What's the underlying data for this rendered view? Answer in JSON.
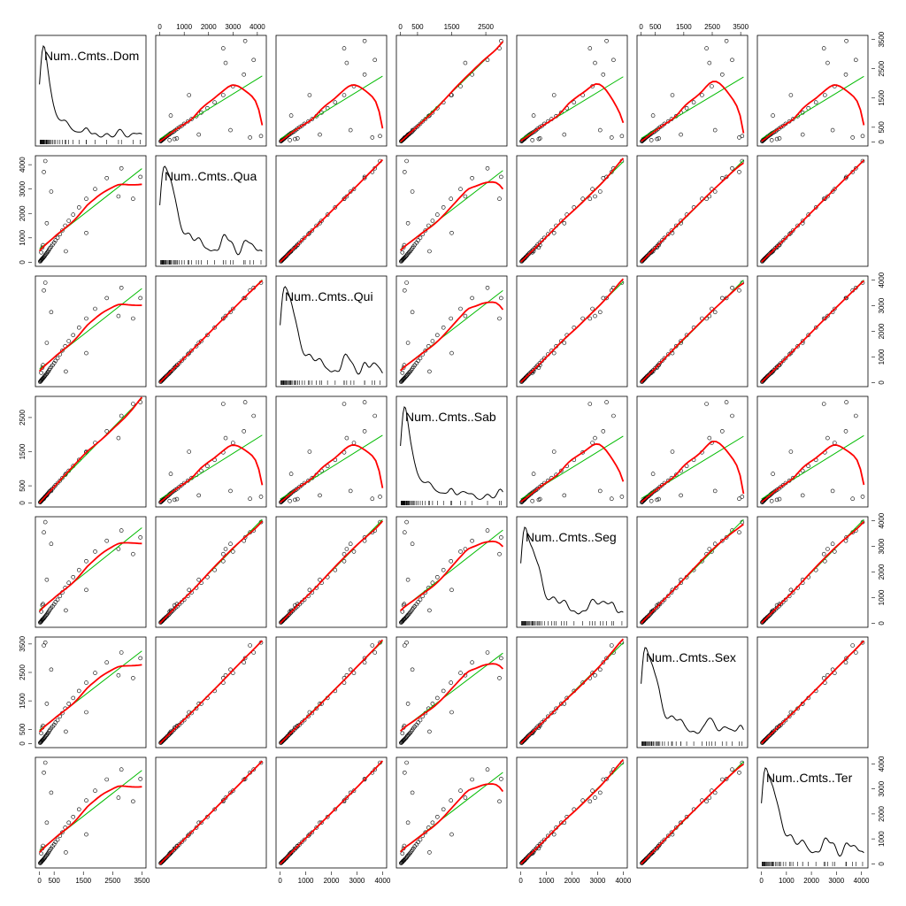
{
  "chart_data": {
    "type": "scatter",
    "title": "",
    "variables": [
      {
        "name": "Num..Cmts..Dom",
        "range": [
          0,
          3500
        ]
      },
      {
        "name": "Num..Cmts..Qua",
        "range": [
          0,
          4200
        ]
      },
      {
        "name": "Num..Cmts..Qui",
        "range": [
          0,
          4000
        ]
      },
      {
        "name": "Num..Cmts..Sab",
        "range": [
          0,
          3000
        ]
      },
      {
        "name": "Num..Cmts..Seg",
        "range": [
          0,
          4000
        ]
      },
      {
        "name": "Num..Cmts..Sex",
        "range": [
          0,
          3600
        ]
      },
      {
        "name": "Num..Cmts..Ter",
        "range": [
          0,
          4100
        ]
      }
    ],
    "ticks": [
      [
        0,
        500,
        1500,
        2500,
        3500
      ],
      [
        0,
        1000,
        2000,
        3000,
        4000
      ],
      [
        0,
        1000,
        2000,
        3000,
        4000
      ],
      [
        0,
        500,
        1500,
        2500
      ],
      [
        0,
        1000,
        2000,
        3000,
        4000
      ],
      [
        0,
        500,
        1500,
        2500,
        3500
      ],
      [
        0,
        1000,
        2000,
        3000,
        4000
      ]
    ],
    "tick_labels": [
      [
        "0",
        "500",
        "1500",
        "2500",
        "3500"
      ],
      [
        "0",
        "1000",
        "2000",
        "3000",
        "4000"
      ],
      [
        "0",
        "1000",
        "2000",
        "3000",
        "4000"
      ],
      [
        "0",
        "500",
        "1500",
        "2500"
      ],
      [
        "0",
        "1000",
        "2000",
        "3000",
        "4000"
      ],
      [
        "0",
        "500",
        "1500",
        "2500",
        "3500"
      ],
      [
        "0",
        "1000",
        "2000",
        "3000",
        "4000"
      ]
    ],
    "observations": [
      [
        20,
        30,
        25,
        18,
        28,
        24,
        27
      ],
      [
        35,
        50,
        48,
        30,
        45,
        40,
        44
      ],
      [
        50,
        70,
        65,
        45,
        60,
        55,
        62
      ],
      [
        60,
        90,
        85,
        55,
        80,
        70,
        82
      ],
      [
        75,
        110,
        100,
        70,
        95,
        90,
        98
      ],
      [
        90,
        130,
        125,
        80,
        115,
        105,
        120
      ],
      [
        100,
        150,
        140,
        95,
        140,
        120,
        135
      ],
      [
        120,
        170,
        160,
        110,
        160,
        140,
        150
      ],
      [
        140,
        200,
        190,
        130,
        180,
        160,
        185
      ],
      [
        160,
        230,
        220,
        150,
        210,
        190,
        210
      ],
      [
        180,
        260,
        250,
        170,
        240,
        210,
        240
      ],
      [
        200,
        300,
        280,
        190,
        270,
        250,
        280
      ],
      [
        230,
        340,
        320,
        210,
        310,
        280,
        320
      ],
      [
        250,
        380,
        350,
        240,
        340,
        310,
        360
      ],
      [
        280,
        420,
        400,
        260,
        390,
        350,
        400
      ],
      [
        300,
        460,
        430,
        290,
        430,
        380,
        440
      ],
      [
        330,
        520,
        490,
        320,
        480,
        430,
        500
      ],
      [
        360,
        580,
        550,
        350,
        540,
        480,
        560
      ],
      [
        400,
        640,
        610,
        380,
        600,
        540,
        620
      ],
      [
        450,
        720,
        680,
        420,
        660,
        600,
        700
      ],
      [
        500,
        800,
        760,
        470,
        740,
        660,
        780
      ],
      [
        550,
        900,
        850,
        520,
        830,
        740,
        870
      ],
      [
        620,
        1000,
        950,
        580,
        920,
        820,
        970
      ],
      [
        700,
        1150,
        1100,
        650,
        1060,
        950,
        1120
      ],
      [
        780,
        1300,
        1250,
        730,
        1200,
        1070,
        1260
      ],
      [
        880,
        1500,
        1420,
        820,
        1380,
        1230,
        1450
      ],
      [
        1000,
        1700,
        1620,
        940,
        1580,
        1400,
        1650
      ],
      [
        1150,
        1950,
        1850,
        1080,
        1800,
        1600,
        1880
      ],
      [
        1350,
        2250,
        2150,
        1260,
        2080,
        1850,
        2180
      ],
      [
        1600,
        2600,
        2500,
        1480,
        2420,
        2140,
        2540
      ],
      [
        1900,
        3000,
        2880,
        1760,
        2800,
        2480,
        2930
      ],
      [
        2300,
        3450,
        3300,
        2100,
        3220,
        2850,
        3380
      ],
      [
        2800,
        3850,
        3700,
        2550,
        3620,
        3200,
        3780
      ],
      [
        3450,
        3500,
        3300,
        2950,
        3350,
        3000,
        3400
      ],
      [
        150,
        3700,
        3600,
        120,
        3550,
        3450,
        3650
      ],
      [
        200,
        4150,
        3900,
        180,
        3950,
        3550,
        4050
      ],
      [
        400,
        2900,
        2750,
        350,
        3100,
        2600,
        2850
      ],
      [
        250,
        1600,
        1550,
        220,
        1700,
        1400,
        1650
      ],
      [
        3200,
        2600,
        2500,
        2900,
        2700,
        2300,
        2500
      ],
      [
        2700,
        2700,
        2600,
        1900,
        2900,
        2400,
        2650
      ],
      [
        100,
        600,
        580,
        90,
        700,
        560,
        620
      ],
      [
        120,
        700,
        680,
        110,
        750,
        620,
        720
      ],
      [
        60,
        400,
        380,
        55,
        450,
        360,
        410
      ],
      [
        1600,
        1200,
        1150,
        1500,
        1300,
        1100,
        1180
      ],
      [
        900,
        450,
        430,
        850,
        500,
        420,
        460
      ]
    ],
    "density_order": [
      0,
      1,
      2,
      3,
      4,
      5,
      6
    ],
    "smoother": {
      "line_color": "#00bb00",
      "lowess_color": "#ff0000"
    },
    "colors": {
      "points": "#000000",
      "frame": "#000000",
      "density": "#000000",
      "rug": "#000000"
    }
  }
}
